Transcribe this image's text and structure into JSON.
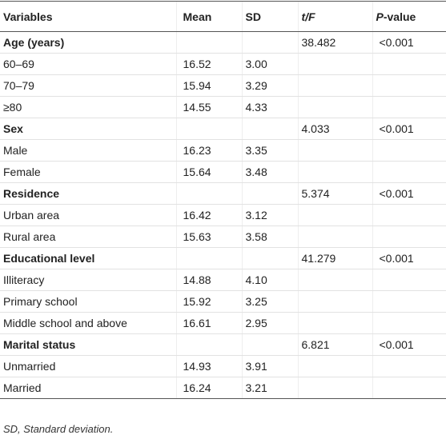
{
  "table": {
    "header": [
      "Variables",
      "Mean",
      "SD",
      "t/F",
      "P-value"
    ],
    "groups": [
      {
        "label": "Age (years)",
        "tf": "38.482",
        "p": "<0.001",
        "items": [
          {
            "label": "60–69",
            "mean": "16.52",
            "sd": "3.00"
          },
          {
            "label": "70–79",
            "mean": "15.94",
            "sd": "3.29"
          },
          {
            "label": "≥80",
            "mean": "14.55",
            "sd": "4.33"
          }
        ]
      },
      {
        "label": "Sex",
        "tf": "4.033",
        "p": "<0.001",
        "items": [
          {
            "label": "Male",
            "mean": "16.23",
            "sd": "3.35"
          },
          {
            "label": "Female",
            "mean": "15.64",
            "sd": "3.48"
          }
        ]
      },
      {
        "label": "Residence",
        "tf": "5.374",
        "p": "<0.001",
        "items": [
          {
            "label": "Urban area",
            "mean": "16.42",
            "sd": "3.12"
          },
          {
            "label": "Rural area",
            "mean": "15.63",
            "sd": "3.58"
          }
        ]
      },
      {
        "label": "Educational level",
        "tf": "41.279",
        "p": "<0.001",
        "items": [
          {
            "label": "Illiteracy",
            "mean": "14.88",
            "sd": "4.10"
          },
          {
            "label": "Primary school",
            "mean": "15.92",
            "sd": "3.25"
          },
          {
            "label": "Middle school and above",
            "mean": "16.61",
            "sd": "2.95"
          }
        ]
      },
      {
        "label": "Marital status",
        "tf": "6.821",
        "p": "<0.001",
        "items": [
          {
            "label": "Unmarried",
            "mean": "14.93",
            "sd": "3.91"
          },
          {
            "label": "Married",
            "mean": "16.24",
            "sd": "3.21"
          }
        ]
      }
    ]
  },
  "footnote": "SD, Standard deviation."
}
